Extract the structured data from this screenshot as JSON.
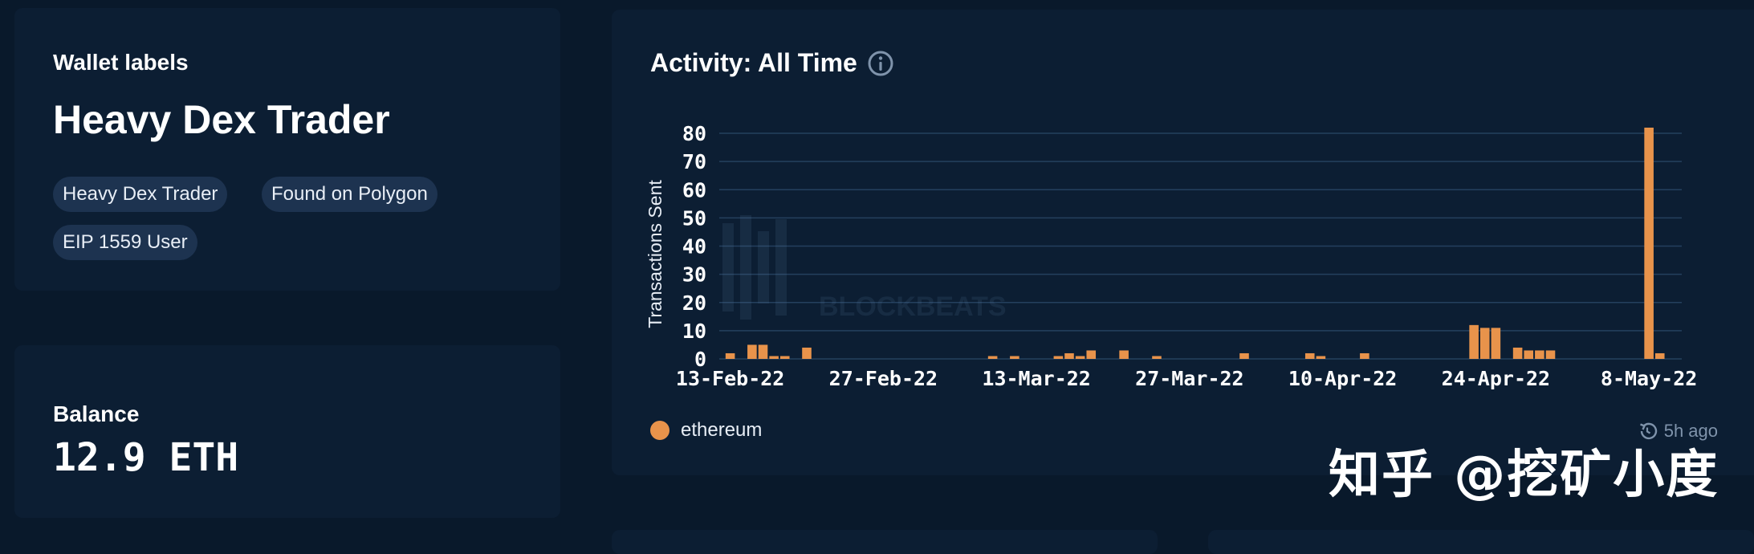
{
  "wallet_labels": {
    "title": "Wallet labels",
    "heading": "Heavy Dex Trader",
    "tags": [
      "Heavy Dex Trader",
      "Found on Polygon",
      "EIP 1559 User"
    ]
  },
  "balance": {
    "title": "Balance",
    "value": "12.9 ETH"
  },
  "activity": {
    "title": "Activity: All Time",
    "info_icon": "info-circle-icon",
    "legend_label": "ethereum",
    "updated_icon": "history-icon",
    "updated": "5h ago"
  },
  "watermark": {
    "text": "知乎 @挖矿小度",
    "bg_logo_text": "BLOCKBEATS"
  },
  "colors": {
    "page_bg": "#09192b",
    "card_bg": "#0c1e33",
    "pill_bg": "#1d3350",
    "bar": "#e8934b",
    "grid": "#24405e",
    "muted": "#7f93ab"
  },
  "chart_data": {
    "type": "bar",
    "ylabel": "Transactions Sent",
    "xlabel": "",
    "ylim": [
      0,
      80
    ],
    "yticks": [
      0,
      10,
      20,
      30,
      40,
      50,
      60,
      70,
      80
    ],
    "grid": true,
    "legend_placement": "bottom-left",
    "xlim": [
      "2022-02-12",
      "2022-05-11"
    ],
    "xticks": [
      "13-Feb-22",
      "27-Feb-22",
      "13-Mar-22",
      "27-Mar-22",
      "10-Apr-22",
      "24-Apr-22",
      "8-May-22"
    ],
    "series": [
      {
        "name": "ethereum",
        "color": "#e8934b",
        "points": [
          {
            "x": "2022-02-13",
            "y": 2
          },
          {
            "x": "2022-02-15",
            "y": 5
          },
          {
            "x": "2022-02-16",
            "y": 5
          },
          {
            "x": "2022-02-17",
            "y": 1
          },
          {
            "x": "2022-02-18",
            "y": 1
          },
          {
            "x": "2022-02-20",
            "y": 4
          },
          {
            "x": "2022-03-09",
            "y": 1
          },
          {
            "x": "2022-03-11",
            "y": 1
          },
          {
            "x": "2022-03-15",
            "y": 1
          },
          {
            "x": "2022-03-16",
            "y": 2
          },
          {
            "x": "2022-03-17",
            "y": 1
          },
          {
            "x": "2022-03-18",
            "y": 3
          },
          {
            "x": "2022-03-21",
            "y": 3
          },
          {
            "x": "2022-03-24",
            "y": 1
          },
          {
            "x": "2022-04-01",
            "y": 2
          },
          {
            "x": "2022-04-07",
            "y": 2
          },
          {
            "x": "2022-04-08",
            "y": 1
          },
          {
            "x": "2022-04-12",
            "y": 2
          },
          {
            "x": "2022-04-22",
            "y": 12
          },
          {
            "x": "2022-04-23",
            "y": 11
          },
          {
            "x": "2022-04-24",
            "y": 11
          },
          {
            "x": "2022-04-26",
            "y": 4
          },
          {
            "x": "2022-04-27",
            "y": 3
          },
          {
            "x": "2022-04-28",
            "y": 3
          },
          {
            "x": "2022-04-29",
            "y": 3
          },
          {
            "x": "2022-05-08",
            "y": 82
          },
          {
            "x": "2022-05-09",
            "y": 2
          }
        ]
      }
    ]
  }
}
